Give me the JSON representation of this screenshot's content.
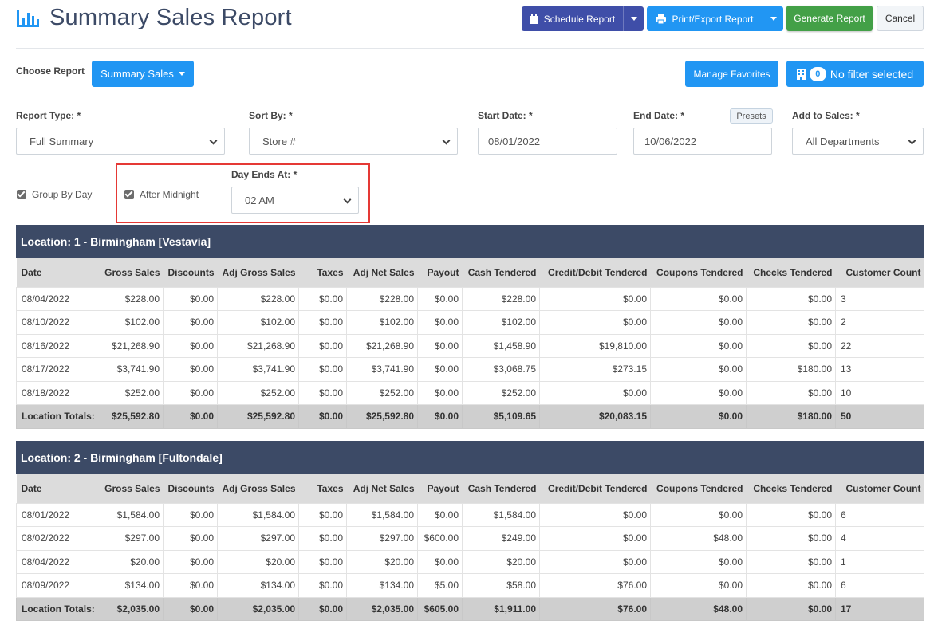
{
  "header": {
    "title": "Summary Sales Report",
    "schedule_label": "Schedule Report",
    "print_label": "Print/Export Report",
    "generate_label": "Generate Report",
    "cancel_label": "Cancel"
  },
  "choose": {
    "label": "Choose Report",
    "report_button": "Summary Sales",
    "manage_favorites": "Manage Favorites",
    "filter_count": "0",
    "filter_label": "No filter selected"
  },
  "form": {
    "report_type": {
      "label": "Report Type: *",
      "value": "Full Summary"
    },
    "sort_by": {
      "label": "Sort By: *",
      "value": "Store #"
    },
    "start_date": {
      "label": "Start Date: *",
      "value": "08/01/2022"
    },
    "end_date": {
      "label": "End Date: *",
      "value": "10/06/2022",
      "presets": "Presets"
    },
    "add_to_sales": {
      "label": "Add to Sales: *",
      "value": "All Departments"
    },
    "group_by_day": "Group By Day",
    "after_midnight": "After Midnight",
    "day_ends_at": {
      "label": "Day Ends At: *",
      "value": "02 AM"
    }
  },
  "columns": [
    "Date",
    "Gross Sales",
    "Discounts",
    "Adj Gross Sales",
    "Taxes",
    "Adj Net Sales",
    "Payout",
    "Cash Tendered",
    "Credit/Debit Tendered",
    "Coupons Tendered",
    "Checks Tendered",
    "Customer Count"
  ],
  "locations": [
    {
      "title": "Location: 1 - Birmingham [Vestavia]",
      "rows": [
        [
          "08/04/2022",
          "$228.00",
          "$0.00",
          "$228.00",
          "$0.00",
          "$228.00",
          "$0.00",
          "$228.00",
          "$0.00",
          "$0.00",
          "$0.00",
          "3"
        ],
        [
          "08/10/2022",
          "$102.00",
          "$0.00",
          "$102.00",
          "$0.00",
          "$102.00",
          "$0.00",
          "$102.00",
          "$0.00",
          "$0.00",
          "$0.00",
          "2"
        ],
        [
          "08/16/2022",
          "$21,268.90",
          "$0.00",
          "$21,268.90",
          "$0.00",
          "$21,268.90",
          "$0.00",
          "$1,458.90",
          "$19,810.00",
          "$0.00",
          "$0.00",
          "22"
        ],
        [
          "08/17/2022",
          "$3,741.90",
          "$0.00",
          "$3,741.90",
          "$0.00",
          "$3,741.90",
          "$0.00",
          "$3,068.75",
          "$273.15",
          "$0.00",
          "$180.00",
          "13"
        ],
        [
          "08/18/2022",
          "$252.00",
          "$0.00",
          "$252.00",
          "$0.00",
          "$252.00",
          "$0.00",
          "$252.00",
          "$0.00",
          "$0.00",
          "$0.00",
          "10"
        ]
      ],
      "totals": [
        "Location Totals:",
        "$25,592.80",
        "$0.00",
        "$25,592.80",
        "$0.00",
        "$25,592.80",
        "$0.00",
        "$5,109.65",
        "$20,083.15",
        "$0.00",
        "$180.00",
        "50"
      ]
    },
    {
      "title": "Location: 2 - Birmingham [Fultondale]",
      "rows": [
        [
          "08/01/2022",
          "$1,584.00",
          "$0.00",
          "$1,584.00",
          "$0.00",
          "$1,584.00",
          "$0.00",
          "$1,584.00",
          "$0.00",
          "$0.00",
          "$0.00",
          "6"
        ],
        [
          "08/02/2022",
          "$297.00",
          "$0.00",
          "$297.00",
          "$0.00",
          "$297.00",
          "$600.00",
          "$249.00",
          "$0.00",
          "$48.00",
          "$0.00",
          "4"
        ],
        [
          "08/04/2022",
          "$20.00",
          "$0.00",
          "$20.00",
          "$0.00",
          "$20.00",
          "$0.00",
          "$20.00",
          "$0.00",
          "$0.00",
          "$0.00",
          "1"
        ],
        [
          "08/09/2022",
          "$134.00",
          "$0.00",
          "$134.00",
          "$0.00",
          "$134.00",
          "$5.00",
          "$58.00",
          "$76.00",
          "$0.00",
          "$0.00",
          "6"
        ]
      ],
      "totals": [
        "Location Totals:",
        "$2,035.00",
        "$0.00",
        "$2,035.00",
        "$0.00",
        "$2,035.00",
        "$605.00",
        "$1,911.00",
        "$76.00",
        "$48.00",
        "$0.00",
        "17"
      ]
    }
  ]
}
